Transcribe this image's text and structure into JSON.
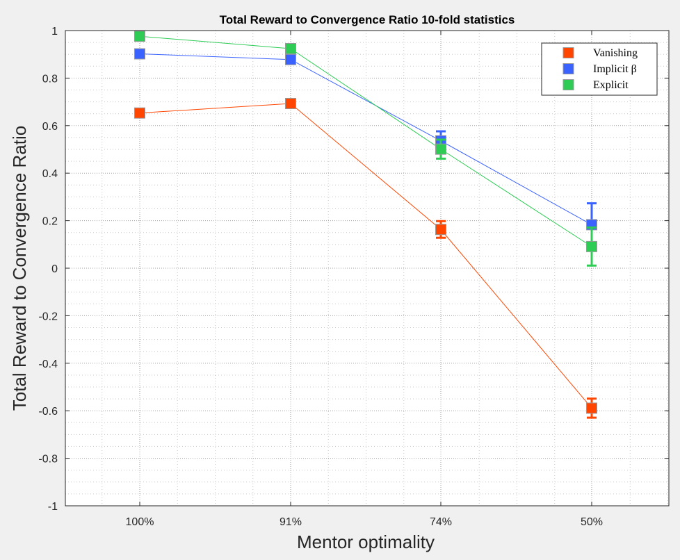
{
  "chart_data": {
    "type": "line",
    "title": "Total Reward to Convergence Ratio 10-fold statistics",
    "xlabel": "Mentor optimality",
    "ylabel": "Total Reward to Convergence Ratio",
    "categories": [
      "100%",
      "91%",
      "74%",
      "50%"
    ],
    "ylim": [
      -1,
      1
    ],
    "yticks": [
      1,
      0.8,
      0.6,
      0.4,
      0.2,
      0,
      -0.2,
      -0.4,
      -0.6,
      -0.8,
      -1
    ],
    "ytick_labels": [
      "1",
      "0.8",
      "0.6",
      "0.4",
      "0.2",
      "0",
      "-0.2",
      "-0.4",
      "-0.6",
      "-0.8",
      "-1"
    ],
    "grid": true,
    "minor_grid": true,
    "legend_position": "top-right",
    "series": [
      {
        "name": "Vanishing",
        "color": "#ff4500",
        "values": [
          0.653,
          0.693,
          0.163,
          -0.589
        ],
        "errors": [
          0.005,
          0.005,
          0.035,
          0.04
        ]
      },
      {
        "name": "Implicit β",
        "color": "#3a62ff",
        "values": [
          0.902,
          0.878,
          0.536,
          0.183
        ],
        "errors": [
          0.005,
          0.005,
          0.04,
          0.09
        ]
      },
      {
        "name": "Explicit",
        "color": "#2ecc55",
        "values": [
          0.976,
          0.924,
          0.501,
          0.091
        ],
        "errors": [
          0.005,
          0.005,
          0.04,
          0.08
        ]
      }
    ]
  }
}
